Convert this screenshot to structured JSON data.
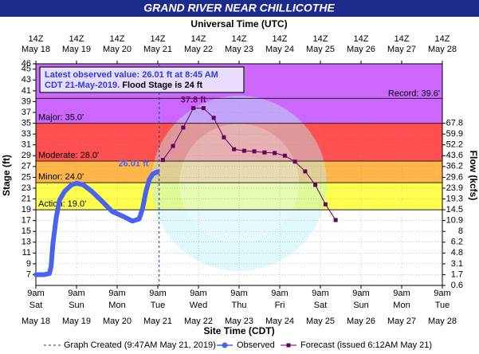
{
  "chart_data": {
    "type": "line",
    "title": "GRAND RIVER NEAR CHILLICOTHE",
    "top_axis_title": "Universal Time (UTC)",
    "xlabel": "Site Time (CDT)",
    "ylabel": "Stage (ft)",
    "y2label": "Flow (kcfs)",
    "xlim": [
      "May 18 09:00",
      "May 28 09:00"
    ],
    "xticks": [
      {
        "value": "May 18 09:00",
        "label": "9am",
        "day": "Sat",
        "date": "May 18",
        "utc": "14Z"
      },
      {
        "value": "May 19 09:00",
        "label": "9am",
        "day": "Sun",
        "date": "May 19",
        "utc": "14Z"
      },
      {
        "value": "May 20 09:00",
        "label": "9am",
        "day": "Mon",
        "date": "May 20",
        "utc": "14Z"
      },
      {
        "value": "May 21 09:00",
        "label": "9am",
        "day": "Tue",
        "date": "May 21",
        "utc": "14Z"
      },
      {
        "value": "May 22 09:00",
        "label": "9am",
        "day": "Wed",
        "date": "May 22",
        "utc": "14Z"
      },
      {
        "value": "May 23 09:00",
        "label": "9am",
        "day": "Thu",
        "date": "May 23",
        "utc": "14Z"
      },
      {
        "value": "May 24 09:00",
        "label": "9am",
        "day": "Fri",
        "date": "May 24",
        "utc": "14Z"
      },
      {
        "value": "May 25 09:00",
        "label": "9am",
        "day": "Sat",
        "date": "May 25",
        "utc": "14Z"
      },
      {
        "value": "May 26 09:00",
        "label": "9am",
        "day": "Sun",
        "date": "May 26",
        "utc": "14Z"
      },
      {
        "value": "May 27 09:00",
        "label": "9am",
        "day": "Mon",
        "date": "May 27",
        "utc": "14Z"
      },
      {
        "value": "May 28 09:00",
        "label": "9am",
        "day": "Tue",
        "date": "May 28",
        "utc": "14Z"
      }
    ],
    "ylim": [
      5,
      46
    ],
    "yticks": [
      7,
      9,
      11,
      13,
      15,
      17,
      19,
      21,
      23,
      25,
      27,
      29,
      31,
      33,
      35,
      37,
      39,
      41,
      43,
      45,
      46
    ],
    "y2ticks": [
      0.6,
      1.7,
      3.1,
      4.8,
      6.2,
      8.0,
      10.9,
      14.5,
      19.3,
      23.9,
      29.6,
      36.2,
      43.6,
      52.2,
      59.9,
      67.8
    ],
    "y2tick_stages": [
      5,
      7,
      9,
      11,
      13,
      15,
      17,
      19,
      21,
      23,
      25,
      27,
      29,
      31,
      33,
      35
    ],
    "grid": true,
    "flood_categories": [
      {
        "label": "Action: 19.0'",
        "value": 19,
        "color": "#ffff4d"
      },
      {
        "label": "Minor: 24.0'",
        "value": 24,
        "color": "#ffb547"
      },
      {
        "label": "Moderate: 28.0'",
        "value": 28,
        "color": "#ff4f4f"
      },
      {
        "label": "Major: 35.0'",
        "value": 35,
        "color": "#cc66ff"
      }
    ],
    "record": {
      "label": "Record: 39.6'",
      "value": 39.6
    },
    "annotation": {
      "line1": "Latest observed value: 26.01 ft at 8:45 AM",
      "line2a": "CDT 21-May-2019.",
      "line2b": "Flood Stage is 24 ft"
    },
    "graph_created": {
      "x": "May 21 09:47",
      "label": "Graph Created (9:47AM May 21, 2019)"
    },
    "series": [
      {
        "name": "Observed",
        "color": "#4a63ee",
        "x": [
          "May 18 09:00",
          "May 18 14:00",
          "May 18 17:00",
          "May 18 18:00",
          "May 18 19:00",
          "May 18 21:00",
          "May 18 23:00",
          "May 19 02:00",
          "May 19 06:00",
          "May 19 09:00",
          "May 19 13:00",
          "May 19 18:00",
          "May 19 23:00",
          "May 20 06:00",
          "May 20 13:00",
          "May 20 18:00",
          "May 20 22:00",
          "May 21 00:00",
          "May 21 02:00",
          "May 21 04:00",
          "May 21 06:00",
          "May 21 08:45"
        ],
        "values": [
          7.0,
          7.0,
          7.2,
          8.5,
          12.5,
          17.5,
          20.8,
          22.4,
          23.6,
          23.9,
          23.6,
          22.4,
          20.9,
          18.7,
          17.7,
          16.9,
          17.3,
          19.2,
          22.4,
          24.6,
          25.6,
          26.01
        ],
        "value_labels": [
          null,
          null,
          null,
          null,
          null,
          null,
          null,
          null,
          null,
          null,
          null,
          null,
          null,
          null,
          null,
          null,
          null,
          null,
          null,
          null,
          null,
          "26.01 ft"
        ]
      },
      {
        "name": "Forecast (issued 6:12AM May 21)",
        "color": "#660066",
        "x": [
          "May 21 12:00",
          "May 21 18:00",
          "May 22 00:00",
          "May 22 06:00",
          "May 22 12:00",
          "May 22 18:00",
          "May 23 00:00",
          "May 23 06:00",
          "May 23 12:00",
          "May 23 18:00",
          "May 24 00:00",
          "May 24 06:00",
          "May 24 12:00",
          "May 24 18:00",
          "May 25 00:00",
          "May 25 06:00",
          "May 25 12:00",
          "May 25 18:00"
        ],
        "values": [
          28.2,
          30.8,
          34.2,
          37.8,
          37.8,
          36.0,
          32.4,
          30.2,
          29.9,
          29.8,
          29.6,
          29.5,
          29.0,
          27.9,
          26.1,
          23.6,
          20.0,
          17.1
        ],
        "value_labels": [
          null,
          null,
          null,
          "37.8 ft",
          null,
          null,
          null,
          null,
          null,
          null,
          null,
          null,
          null,
          null,
          null,
          null,
          null,
          null
        ]
      }
    ]
  }
}
